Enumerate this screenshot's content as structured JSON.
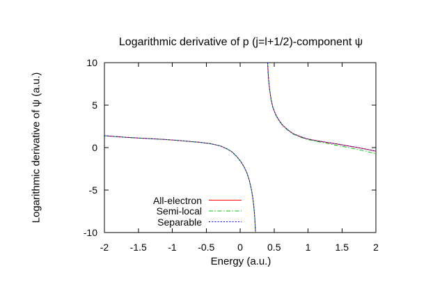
{
  "chart_data": {
    "type": "line",
    "title": "Logarithmic derivative of p (j=l+1/2)-component ψ",
    "xlabel": "Energy (a.u.)",
    "ylabel": "Logarithmic derivative of ψ (a.u.)",
    "xlim": [
      -2,
      2
    ],
    "ylim": [
      -10,
      10
    ],
    "grid": false,
    "legend_position": "inside-bottom-center-left",
    "background_color": "#ffffff",
    "axis_color": "#000000",
    "xticks": {
      "values": [
        -2,
        -1.5,
        -1,
        -0.5,
        0,
        0.5,
        1,
        1.5,
        2
      ],
      "labels": [
        "-2",
        "-1.5",
        "-1",
        "-0.5",
        "0",
        "0.5",
        "1",
        "1.5",
        "2"
      ]
    },
    "yticks": {
      "values": [
        10,
        5,
        0,
        -5,
        -10
      ],
      "labels": [
        "10",
        "5",
        "0",
        "-5",
        "-10"
      ]
    },
    "pole_note": "curve diverges to -10 near E=0.23 and re-enters from +10 near E=0.40",
    "series": [
      {
        "name": "All-electron",
        "color": "#ff0000",
        "style": "solid",
        "branches": [
          [
            [
              -2.0,
              1.4
            ],
            [
              -1.7,
              1.22
            ],
            [
              -1.4,
              1.08
            ],
            [
              -1.1,
              0.95
            ],
            [
              -0.85,
              0.8
            ],
            [
              -0.6,
              0.62
            ],
            [
              -0.45,
              0.48
            ],
            [
              -0.3,
              0.22
            ],
            [
              -0.2,
              -0.12
            ],
            [
              -0.12,
              -0.5
            ],
            [
              -0.05,
              -1.05
            ],
            [
              0.01,
              -1.65
            ],
            [
              0.06,
              -2.3
            ],
            [
              0.1,
              -3.0
            ],
            [
              0.135,
              -3.85
            ],
            [
              0.165,
              -4.9
            ],
            [
              0.185,
              -5.8
            ],
            [
              0.2,
              -6.8
            ],
            [
              0.213,
              -8.0
            ],
            [
              0.221,
              -9.0
            ],
            [
              0.227,
              -10.0
            ]
          ],
          [
            [
              0.405,
              10.0
            ],
            [
              0.41,
              9.1
            ],
            [
              0.42,
              8.0
            ],
            [
              0.435,
              6.8
            ],
            [
              0.455,
              5.7
            ],
            [
              0.48,
              4.8
            ],
            [
              0.52,
              3.95
            ],
            [
              0.565,
              3.3
            ],
            [
              0.625,
              2.65
            ],
            [
              0.7,
              2.1
            ],
            [
              0.78,
              1.65
            ],
            [
              0.87,
              1.35
            ],
            [
              0.975,
              1.05
            ],
            [
              1.1,
              0.85
            ],
            [
              1.23,
              0.68
            ],
            [
              1.385,
              0.48
            ],
            [
              1.5,
              0.33
            ],
            [
              1.7,
              0.05
            ],
            [
              1.85,
              -0.17
            ],
            [
              2.0,
              -0.42
            ]
          ]
        ]
      },
      {
        "name": "Semi-local",
        "color": "#00c000",
        "style": "dash-dot",
        "branches": [
          [
            [
              -2.0,
              1.4
            ],
            [
              -1.7,
              1.22
            ],
            [
              -1.4,
              1.08
            ],
            [
              -1.1,
              0.95
            ],
            [
              -0.85,
              0.8
            ],
            [
              -0.6,
              0.62
            ],
            [
              -0.45,
              0.48
            ],
            [
              -0.3,
              0.22
            ],
            [
              -0.2,
              -0.12
            ],
            [
              -0.12,
              -0.5
            ],
            [
              -0.05,
              -1.05
            ],
            [
              0.01,
              -1.65
            ],
            [
              0.06,
              -2.3
            ],
            [
              0.1,
              -3.0
            ],
            [
              0.135,
              -3.85
            ],
            [
              0.165,
              -4.9
            ],
            [
              0.185,
              -5.8
            ],
            [
              0.2,
              -6.8
            ],
            [
              0.213,
              -8.0
            ],
            [
              0.221,
              -9.0
            ],
            [
              0.227,
              -10.0
            ]
          ],
          [
            [
              0.405,
              10.0
            ],
            [
              0.41,
              9.1
            ],
            [
              0.42,
              8.0
            ],
            [
              0.435,
              6.8
            ],
            [
              0.455,
              5.65
            ],
            [
              0.48,
              4.75
            ],
            [
              0.52,
              3.9
            ],
            [
              0.565,
              3.25
            ],
            [
              0.625,
              2.6
            ],
            [
              0.7,
              2.05
            ],
            [
              0.78,
              1.6
            ],
            [
              0.87,
              1.28
            ],
            [
              0.975,
              0.98
            ],
            [
              1.1,
              0.78
            ],
            [
              1.23,
              0.57
            ],
            [
              1.385,
              0.33
            ],
            [
              1.5,
              0.15
            ],
            [
              1.7,
              -0.15
            ],
            [
              1.85,
              -0.42
            ],
            [
              2.0,
              -0.72
            ]
          ]
        ]
      },
      {
        "name": "Separable",
        "color": "#0000ff",
        "style": "dotted",
        "branches": [
          [
            [
              -2.0,
              1.4
            ],
            [
              -1.7,
              1.22
            ],
            [
              -1.4,
              1.08
            ],
            [
              -1.1,
              0.95
            ],
            [
              -0.85,
              0.8
            ],
            [
              -0.6,
              0.62
            ],
            [
              -0.45,
              0.48
            ],
            [
              -0.3,
              0.22
            ],
            [
              -0.2,
              -0.12
            ],
            [
              -0.12,
              -0.5
            ],
            [
              -0.05,
              -1.05
            ],
            [
              0.01,
              -1.65
            ],
            [
              0.06,
              -2.3
            ],
            [
              0.1,
              -3.0
            ],
            [
              0.135,
              -3.85
            ],
            [
              0.165,
              -4.9
            ],
            [
              0.185,
              -5.8
            ],
            [
              0.2,
              -6.8
            ],
            [
              0.213,
              -8.0
            ],
            [
              0.221,
              -9.0
            ],
            [
              0.227,
              -10.0
            ]
          ],
          [
            [
              0.405,
              10.0
            ],
            [
              0.41,
              9.1
            ],
            [
              0.42,
              8.0
            ],
            [
              0.435,
              6.8
            ],
            [
              0.455,
              5.7
            ],
            [
              0.48,
              4.8
            ],
            [
              0.52,
              3.95
            ],
            [
              0.565,
              3.3
            ],
            [
              0.625,
              2.65
            ],
            [
              0.7,
              2.1
            ],
            [
              0.78,
              1.65
            ],
            [
              0.87,
              1.35
            ],
            [
              0.975,
              1.05
            ],
            [
              1.1,
              0.85
            ],
            [
              1.23,
              0.68
            ],
            [
              1.385,
              0.48
            ],
            [
              1.5,
              0.33
            ],
            [
              1.7,
              0.05
            ],
            [
              1.85,
              -0.17
            ],
            [
              2.0,
              -0.42
            ]
          ]
        ]
      }
    ]
  }
}
